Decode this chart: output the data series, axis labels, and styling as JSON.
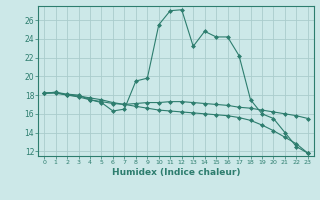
{
  "xlabel": "Humidex (Indice chaleur)",
  "background_color": "#cce8e8",
  "line_color": "#2d7d6e",
  "grid_color": "#aacccc",
  "xlim": [
    -0.5,
    23.5
  ],
  "ylim": [
    11.5,
    27.5
  ],
  "yticks": [
    12,
    14,
    16,
    18,
    20,
    22,
    24,
    26
  ],
  "xticks": [
    0,
    1,
    2,
    3,
    4,
    5,
    6,
    7,
    8,
    9,
    10,
    11,
    12,
    13,
    14,
    15,
    16,
    17,
    18,
    19,
    20,
    21,
    22,
    23
  ],
  "series": [
    {
      "x": [
        0,
        1,
        2,
        3,
        4,
        5,
        6,
        7,
        8,
        9,
        10,
        11,
        12,
        13,
        14,
        15,
        16,
        17,
        18,
        19,
        20,
        21,
        22,
        23
      ],
      "y": [
        18.2,
        18.3,
        18.1,
        18.0,
        17.5,
        17.2,
        16.3,
        16.5,
        19.5,
        19.8,
        25.5,
        27.0,
        27.1,
        23.2,
        24.8,
        24.2,
        24.2,
        22.2,
        17.5,
        16.0,
        15.5,
        14.0,
        12.5,
        11.8
      ]
    },
    {
      "x": [
        0,
        1,
        2,
        3,
        4,
        5,
        6,
        7,
        8,
        9,
        10,
        11,
        12,
        13,
        14,
        15,
        16,
        17,
        18,
        19,
        20,
        21,
        22,
        23
      ],
      "y": [
        18.2,
        18.3,
        18.0,
        17.8,
        17.5,
        17.3,
        17.1,
        17.0,
        17.1,
        17.2,
        17.2,
        17.3,
        17.3,
        17.2,
        17.1,
        17.0,
        16.9,
        16.7,
        16.6,
        16.4,
        16.2,
        16.0,
        15.8,
        15.5
      ]
    },
    {
      "x": [
        0,
        1,
        2,
        3,
        4,
        5,
        6,
        7,
        8,
        9,
        10,
        11,
        12,
        13,
        14,
        15,
        16,
        17,
        18,
        19,
        20,
        21,
        22,
        23
      ],
      "y": [
        18.2,
        18.2,
        18.0,
        17.9,
        17.7,
        17.5,
        17.2,
        17.0,
        16.8,
        16.6,
        16.4,
        16.3,
        16.2,
        16.1,
        16.0,
        15.9,
        15.8,
        15.6,
        15.3,
        14.8,
        14.2,
        13.5,
        12.8,
        11.8
      ]
    }
  ]
}
